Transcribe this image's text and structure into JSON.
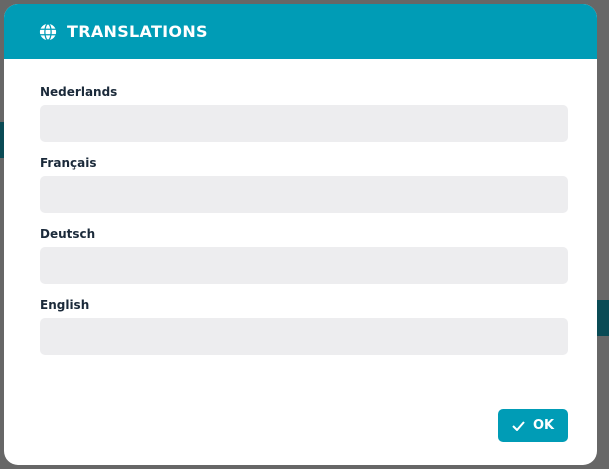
{
  "dialog": {
    "title": "TRANSLATIONS",
    "icon": "globe-icon",
    "fields": [
      {
        "label": "Nederlands",
        "value": ""
      },
      {
        "label": "Français",
        "value": ""
      },
      {
        "label": "Deutsch",
        "value": ""
      },
      {
        "label": "English",
        "value": ""
      }
    ],
    "ok_label": "OK"
  },
  "colors": {
    "accent": "#009cb6",
    "input_bg": "#ededef",
    "label": "#1b2a3a"
  }
}
